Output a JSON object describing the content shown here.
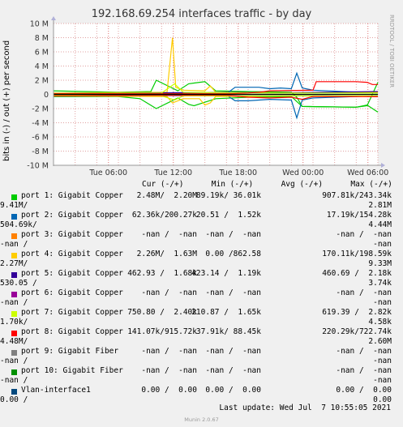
{
  "chart_data": {
    "type": "line",
    "title": "192.168.69.254 interfaces traffic - by day",
    "ylabel": "bits in (-) / out (+) per second",
    "ylim": [
      -10000000,
      10000000
    ],
    "yticks": [
      "10 M",
      "8 M",
      "6 M",
      "4 M",
      "2 M",
      "0",
      "-2 M",
      "-4 M",
      "-6 M",
      "-8 M",
      "-10 M"
    ],
    "xticks": [
      "Tue 06:00",
      "Tue 12:00",
      "Tue 18:00",
      "Wed 00:00",
      "Wed 06:00"
    ],
    "x_unit": "hours since the start of the plotted window (Tue 00:55)",
    "xlim": [
      0,
      30
    ],
    "x_tick_values": [
      5.08,
      11.08,
      17.08,
      23.08,
      29.08
    ],
    "series": [
      {
        "name": "port 1: Gigabit Copper",
        "color": "#00cc00",
        "out": [
          [
            0,
            0.5
          ],
          [
            6,
            0.3
          ],
          [
            9,
            0.4
          ],
          [
            9.5,
            2.0
          ],
          [
            11.5,
            0.5
          ],
          [
            12.5,
            1.5
          ],
          [
            13,
            1.6
          ],
          [
            14,
            1.8
          ],
          [
            15,
            0.5
          ],
          [
            18,
            0.4
          ],
          [
            22,
            0.3
          ],
          [
            22.5,
            -0.4
          ],
          [
            23,
            -1.7
          ],
          [
            28,
            -1.8
          ],
          [
            29,
            -1.6
          ],
          [
            30,
            1.7
          ]
        ],
        "in": [
          [
            0,
            -0.3
          ],
          [
            6,
            -0.3
          ],
          [
            8,
            -0.6
          ],
          [
            9.5,
            -2.0
          ],
          [
            11.5,
            -0.5
          ],
          [
            12.5,
            -1.4
          ],
          [
            13,
            -1.6
          ],
          [
            15,
            -0.6
          ],
          [
            18,
            -0.4
          ],
          [
            22,
            -0.3
          ],
          [
            23,
            -1.7
          ],
          [
            28,
            -1.8
          ],
          [
            29,
            -1.5
          ],
          [
            30,
            -2.5
          ]
        ]
      },
      {
        "name": "port 2: Gigabit Copper",
        "color": "#0066b3",
        "out": [
          [
            0,
            0.1
          ],
          [
            16,
            0.1
          ],
          [
            16.8,
            1.0
          ],
          [
            18,
            1.0
          ],
          [
            19,
            1.0
          ],
          [
            20,
            0.8
          ],
          [
            21,
            0.9
          ],
          [
            22,
            0.8
          ],
          [
            22.5,
            3.0
          ],
          [
            23,
            0.9
          ],
          [
            24,
            0.6
          ],
          [
            30,
            0.2
          ]
        ],
        "in": [
          [
            0,
            -0.1
          ],
          [
            16,
            -0.1
          ],
          [
            16.8,
            -0.9
          ],
          [
            18,
            -0.9
          ],
          [
            20,
            -0.7
          ],
          [
            22,
            -0.8
          ],
          [
            22.5,
            -3.3
          ],
          [
            23,
            -0.8
          ],
          [
            24,
            -0.5
          ],
          [
            30,
            -0.2
          ]
        ]
      },
      {
        "name": "port 4: Gigabit Copper",
        "color": "#ffcc00",
        "out": [
          [
            0,
            0.2
          ],
          [
            10.5,
            0.3
          ],
          [
            11,
            8.0
          ],
          [
            11.3,
            1.0
          ],
          [
            12,
            0.6
          ],
          [
            14,
            0.5
          ],
          [
            14.5,
            1.2
          ],
          [
            15,
            0.3
          ],
          [
            22,
            0.2
          ],
          [
            28,
            0.3
          ],
          [
            30,
            0.3
          ]
        ],
        "in": [
          [
            0,
            -0.2
          ],
          [
            10.5,
            -0.3
          ],
          [
            11,
            -1.2
          ],
          [
            12,
            -0.6
          ],
          [
            13.5,
            -0.6
          ],
          [
            14,
            -1.5
          ],
          [
            14.5,
            -1.2
          ],
          [
            15,
            -0.3
          ],
          [
            22,
            -0.2
          ],
          [
            30,
            -0.3
          ]
        ]
      },
      {
        "name": "port 5: Gigabit Copper",
        "color": "#330099",
        "out": [
          [
            0,
            0.1
          ],
          [
            16,
            0.3
          ],
          [
            20,
            0.2
          ],
          [
            25,
            0.3
          ],
          [
            30,
            0.4
          ]
        ],
        "in": [
          [
            0,
            -0.1
          ],
          [
            16,
            -0.2
          ],
          [
            20,
            -0.2
          ],
          [
            25,
            -0.2
          ],
          [
            30,
            -0.3
          ]
        ]
      },
      {
        "name": "port 7: Gigabit Copper",
        "color": "#ccff00",
        "out": [
          [
            0,
            0.1
          ],
          [
            10,
            0.2
          ],
          [
            11.2,
            1.5
          ],
          [
            12,
            0.3
          ],
          [
            20,
            0.2
          ],
          [
            30,
            0.2
          ]
        ],
        "in": [
          [
            0,
            -0.1
          ],
          [
            10,
            -0.2
          ],
          [
            11.2,
            -0.8
          ],
          [
            12,
            -0.2
          ],
          [
            20,
            -0.2
          ],
          [
            30,
            -0.2
          ]
        ]
      },
      {
        "name": "port 8: Gigabit Copper",
        "color": "#ff0000",
        "out": [
          [
            0,
            0.1
          ],
          [
            16,
            0.1
          ],
          [
            16.5,
            0.1
          ],
          [
            18,
            0.2
          ],
          [
            19,
            0.3
          ],
          [
            20,
            0.5
          ],
          [
            24,
            0.6
          ],
          [
            24.3,
            1.8
          ],
          [
            28,
            1.8
          ],
          [
            29,
            1.7
          ],
          [
            29.5,
            1.4
          ],
          [
            30,
            1.4
          ]
        ],
        "in": [
          [
            0,
            -0.2
          ],
          [
            16,
            -0.1
          ],
          [
            18,
            -0.4
          ],
          [
            20,
            -0.5
          ],
          [
            22,
            -0.4
          ],
          [
            23,
            -0.7
          ],
          [
            24,
            -0.3
          ],
          [
            28,
            -0.3
          ],
          [
            30,
            -0.3
          ]
        ]
      },
      {
        "name": "port 10: Gigabit Fiber",
        "color": "#008f00",
        "out": [
          [
            0,
            0.0
          ],
          [
            30,
            0.0
          ]
        ],
        "in": [
          [
            0,
            0.0
          ],
          [
            30,
            0.0
          ]
        ]
      }
    ]
  },
  "legend": {
    "header": "Cur (-/+)      Min (-/+)      Avg (-/+)      Max (-/+)",
    "rows": [
      {
        "color": "#00cc00",
        "name": "port 1: Gigabit Copper",
        "cur": "2.48M/  2.20M",
        "min": "89.19k/ 36.01k",
        "avg": "907.81k/243.34k",
        "max": "",
        "wrap": "9.41M/",
        "maxwrap": "2.81M"
      },
      {
        "color": "#0066b3",
        "name": "port 2: Gigabit Copper",
        "cur": "62.36k/200.27k",
        "min": "20.51 /  1.52k",
        "avg": "17.19k/154.28k",
        "max": "",
        "wrap": "504.69k/",
        "maxwrap": "4.44M"
      },
      {
        "color": "#ff8000",
        "name": "port 3: Gigabit Copper",
        "cur": "-nan /  -nan",
        "min": "-nan /  -nan",
        "avg": "-nan /  -nan",
        "max": "",
        "wrap": "-nan /",
        "maxwrap": "-nan"
      },
      {
        "color": "#ffcc00",
        "name": "port 4: Gigabit Copper",
        "cur": "2.26M/  1.63M",
        "min": "0.00 /862.58",
        "avg": "170.11k/198.59k",
        "max": "",
        "wrap": "2.27M/",
        "maxwrap": "9.33M"
      },
      {
        "color": "#330099",
        "name": "port 5: Gigabit Copper",
        "cur": "462.93 /  1.68k",
        "min": "423.14 /  1.19k",
        "avg": "460.69 /  2.18k",
        "max": "",
        "wrap": "530.05 /",
        "maxwrap": "3.74k"
      },
      {
        "color": "#990099",
        "name": "port 6: Gigabit Copper",
        "cur": "-nan /  -nan",
        "min": "-nan /  -nan",
        "avg": "-nan /  -nan",
        "max": "",
        "wrap": "-nan /",
        "maxwrap": "-nan"
      },
      {
        "color": "#ccff00",
        "name": "port 7: Gigabit Copper",
        "cur": "750.80 /  2.40k",
        "min": "210.87 /  1.65k",
        "avg": "619.39 /  2.82k",
        "max": "",
        "wrap": "1.70k/",
        "maxwrap": "4.58k"
      },
      {
        "color": "#ff0000",
        "name": "port 8: Gigabit Copper",
        "cur": "141.07k/915.72k",
        "min": "37.91k/ 88.45k",
        "avg": "220.29k/722.74k",
        "max": "",
        "wrap": "4.48M/",
        "maxwrap": "2.60M"
      },
      {
        "color": "#808080",
        "name": "port 9: Gigabit Fiber",
        "cur": "-nan /  -nan",
        "min": "-nan /  -nan",
        "avg": "-nan /  -nan",
        "max": "",
        "wrap": "-nan /",
        "maxwrap": "-nan"
      },
      {
        "color": "#008f00",
        "name": "port 10: Gigabit Fiber",
        "cur": "-nan /  -nan",
        "min": "-nan /  -nan",
        "avg": "-nan /  -nan",
        "max": "",
        "wrap": "-nan /",
        "maxwrap": "-nan"
      },
      {
        "color": "#00487d",
        "name": "Vlan-interface1",
        "cur": "0.00 /  0.00",
        "min": "0.00 /  0.00",
        "avg": "0.00 /  0.00",
        "max": "",
        "wrap": "0.00 /",
        "maxwrap": "0.00"
      }
    ]
  },
  "footer": "Last update: Wed Jul  7 10:55:05 2021",
  "munin": "Munin 2.0.67",
  "side_text": "RRDTOOL / TOBI OETIKER"
}
